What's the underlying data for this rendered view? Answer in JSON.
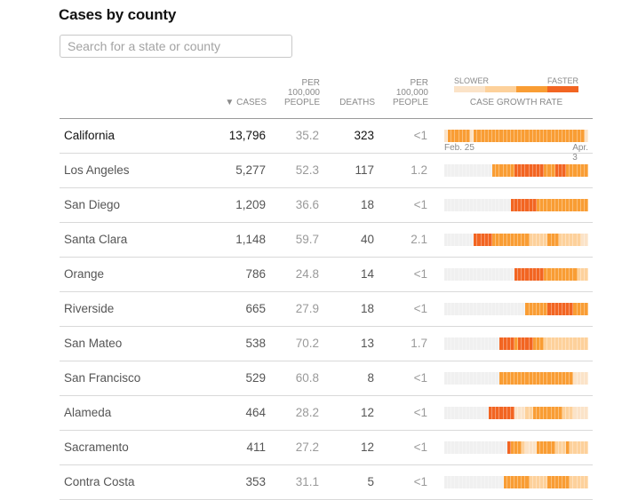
{
  "title": "Cases by county",
  "search": {
    "placeholder": "Search for a state or county",
    "value": ""
  },
  "headers": {
    "cases": "▼ CASES",
    "per100k_cases": [
      "PER",
      "100,000",
      "PEOPLE"
    ],
    "deaths": "DEATHS",
    "per100k_deaths": [
      "PER",
      "100,000",
      "PEOPLE"
    ],
    "legend": {
      "slower": "SLOWER",
      "faster": "FASTER",
      "caption": "CASE GROWTH RATE"
    }
  },
  "colors": {
    "level_0": "#f0f0f0",
    "level_1": "#fbe3c8",
    "level_2": "#fdd19b",
    "level_3": "#f99d34",
    "level_4": "#f26522"
  },
  "chart_data": {
    "type": "heatmap",
    "title": "Case growth rate",
    "x_start_label": "Feb. 25",
    "x_end_label": "Apr. 3",
    "num_days": 39,
    "levels_legend": [
      "slower",
      "",
      "",
      "faster"
    ],
    "level_encoding": "0=no data, 1=slowest, 2=slow, 3=fast, 4=fastest",
    "rows": [
      {
        "name": "California",
        "cases": "13,796",
        "cases_per_100k": "35.2",
        "deaths": "323",
        "deaths_per_100k": "<1",
        "is_state": true,
        "growth": [
          1,
          3,
          3,
          3,
          3,
          3,
          3,
          1,
          3,
          3,
          3,
          3,
          3,
          3,
          3,
          3,
          3,
          3,
          3,
          3,
          3,
          3,
          3,
          3,
          3,
          3,
          3,
          3,
          3,
          3,
          3,
          3,
          3,
          3,
          3,
          3,
          3,
          3,
          1
        ]
      },
      {
        "name": "Los Angeles",
        "cases": "5,277",
        "cases_per_100k": "52.3",
        "deaths": "117",
        "deaths_per_100k": "1.2",
        "growth": [
          0,
          0,
          0,
          0,
          0,
          0,
          0,
          0,
          0,
          0,
          0,
          0,
          0,
          3,
          3,
          3,
          3,
          3,
          3,
          4,
          4,
          4,
          4,
          4,
          4,
          4,
          4,
          3,
          3,
          3,
          4,
          4,
          4,
          3,
          3,
          3,
          3,
          3,
          3
        ]
      },
      {
        "name": "San Diego",
        "cases": "1,209",
        "cases_per_100k": "36.6",
        "deaths": "18",
        "deaths_per_100k": "<1",
        "growth": [
          0,
          0,
          0,
          0,
          0,
          0,
          0,
          0,
          0,
          0,
          0,
          0,
          0,
          0,
          0,
          0,
          0,
          0,
          4,
          4,
          4,
          4,
          4,
          4,
          4,
          3,
          3,
          3,
          3,
          3,
          3,
          3,
          3,
          3,
          3,
          3,
          3,
          3,
          3
        ]
      },
      {
        "name": "Santa Clara",
        "cases": "1,148",
        "cases_per_100k": "59.7",
        "deaths": "40",
        "deaths_per_100k": "2.1",
        "growth": [
          0,
          0,
          0,
          0,
          0,
          0,
          0,
          0,
          4,
          4,
          4,
          4,
          4,
          3,
          3,
          3,
          3,
          3,
          3,
          3,
          3,
          3,
          3,
          2,
          2,
          2,
          2,
          2,
          3,
          3,
          3,
          2,
          2,
          2,
          2,
          2,
          2,
          1,
          1
        ]
      },
      {
        "name": "Orange",
        "cases": "786",
        "cases_per_100k": "24.8",
        "deaths": "14",
        "deaths_per_100k": "<1",
        "growth": [
          0,
          0,
          0,
          0,
          0,
          0,
          0,
          0,
          0,
          0,
          0,
          0,
          0,
          0,
          0,
          0,
          0,
          0,
          0,
          4,
          4,
          4,
          4,
          4,
          4,
          4,
          4,
          3,
          3,
          3,
          3,
          3,
          3,
          3,
          3,
          3,
          2,
          2,
          2
        ]
      },
      {
        "name": "Riverside",
        "cases": "665",
        "cases_per_100k": "27.9",
        "deaths": "18",
        "deaths_per_100k": "<1",
        "growth": [
          0,
          0,
          0,
          0,
          0,
          0,
          0,
          0,
          0,
          0,
          0,
          0,
          0,
          0,
          0,
          0,
          0,
          0,
          0,
          0,
          0,
          0,
          3,
          3,
          3,
          3,
          3,
          3,
          4,
          4,
          4,
          4,
          4,
          4,
          4,
          3,
          3,
          3,
          3
        ]
      },
      {
        "name": "San Mateo",
        "cases": "538",
        "cases_per_100k": "70.2",
        "deaths": "13",
        "deaths_per_100k": "1.7",
        "growth": [
          0,
          0,
          0,
          0,
          0,
          0,
          0,
          0,
          0,
          0,
          0,
          0,
          0,
          0,
          0,
          4,
          4,
          4,
          4,
          3,
          4,
          4,
          4,
          4,
          3,
          3,
          3,
          2,
          2,
          2,
          2,
          2,
          2,
          2,
          2,
          2,
          2,
          2,
          2
        ]
      },
      {
        "name": "San Francisco",
        "cases": "529",
        "cases_per_100k": "60.8",
        "deaths": "8",
        "deaths_per_100k": "<1",
        "growth": [
          0,
          0,
          0,
          0,
          0,
          0,
          0,
          0,
          0,
          0,
          0,
          0,
          0,
          0,
          0,
          3,
          3,
          3,
          3,
          3,
          3,
          3,
          3,
          3,
          3,
          3,
          3,
          3,
          3,
          3,
          3,
          3,
          3,
          3,
          3,
          1,
          1,
          1,
          1
        ]
      },
      {
        "name": "Alameda",
        "cases": "464",
        "cases_per_100k": "28.2",
        "deaths": "12",
        "deaths_per_100k": "<1",
        "growth": [
          0,
          0,
          0,
          0,
          0,
          0,
          0,
          0,
          0,
          0,
          0,
          0,
          4,
          4,
          4,
          4,
          4,
          4,
          4,
          1,
          1,
          1,
          2,
          2,
          3,
          3,
          3,
          3,
          3,
          3,
          3,
          3,
          2,
          2,
          2,
          1,
          1,
          1,
          1
        ]
      },
      {
        "name": "Sacramento",
        "cases": "411",
        "cases_per_100k": "27.2",
        "deaths": "12",
        "deaths_per_100k": "<1",
        "growth": [
          0,
          0,
          0,
          0,
          0,
          0,
          0,
          0,
          0,
          0,
          0,
          0,
          0,
          0,
          0,
          0,
          0,
          4,
          3,
          3,
          3,
          2,
          1,
          1,
          1,
          3,
          3,
          3,
          3,
          3,
          2,
          2,
          2,
          3,
          2,
          2,
          2,
          2,
          2
        ]
      },
      {
        "name": "Contra Costa",
        "cases": "353",
        "cases_per_100k": "31.1",
        "deaths": "5",
        "deaths_per_100k": "<1",
        "growth": [
          0,
          0,
          0,
          0,
          0,
          0,
          0,
          0,
          0,
          0,
          0,
          0,
          0,
          0,
          0,
          0,
          3,
          3,
          3,
          3,
          3,
          3,
          3,
          2,
          2,
          2,
          2,
          2,
          3,
          3,
          3,
          3,
          3,
          3,
          2,
          2,
          2,
          2,
          2
        ]
      }
    ]
  }
}
